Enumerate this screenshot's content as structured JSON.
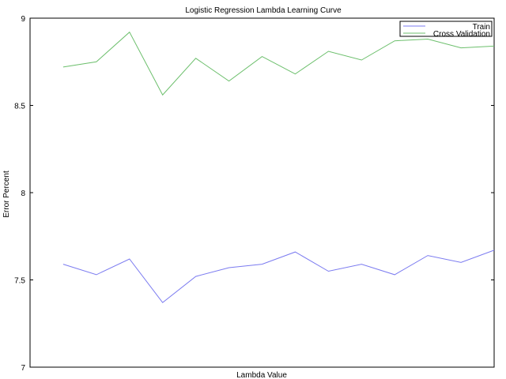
{
  "chart_data": {
    "type": "line",
    "title": "Logistic Regression Lambda Learning Curve",
    "xlabel": "Lambda Value",
    "ylabel": "Error Percent",
    "ylim": [
      7,
      9
    ],
    "yticks": [
      "7",
      "7.5",
      "8",
      "8.5",
      "9"
    ],
    "xticks_shown": false,
    "grid": false,
    "legend_position": "top-right",
    "x": [
      1,
      2,
      3,
      4,
      5,
      6,
      7,
      8,
      9,
      10,
      11,
      12,
      13,
      14
    ],
    "xlim": [
      0,
      14
    ],
    "series": [
      {
        "name": "Train",
        "color": "#7b7bf0",
        "values": [
          7.59,
          7.53,
          7.62,
          7.37,
          7.52,
          7.57,
          7.59,
          7.66,
          7.55,
          7.59,
          7.53,
          7.64,
          7.6,
          7.67
        ]
      },
      {
        "name": "Cross Validation",
        "color": "#6cbf6c",
        "values": [
          8.72,
          8.75,
          8.92,
          8.56,
          8.77,
          8.64,
          8.78,
          8.68,
          8.81,
          8.76,
          8.87,
          8.88,
          8.83,
          8.84
        ]
      }
    ]
  }
}
